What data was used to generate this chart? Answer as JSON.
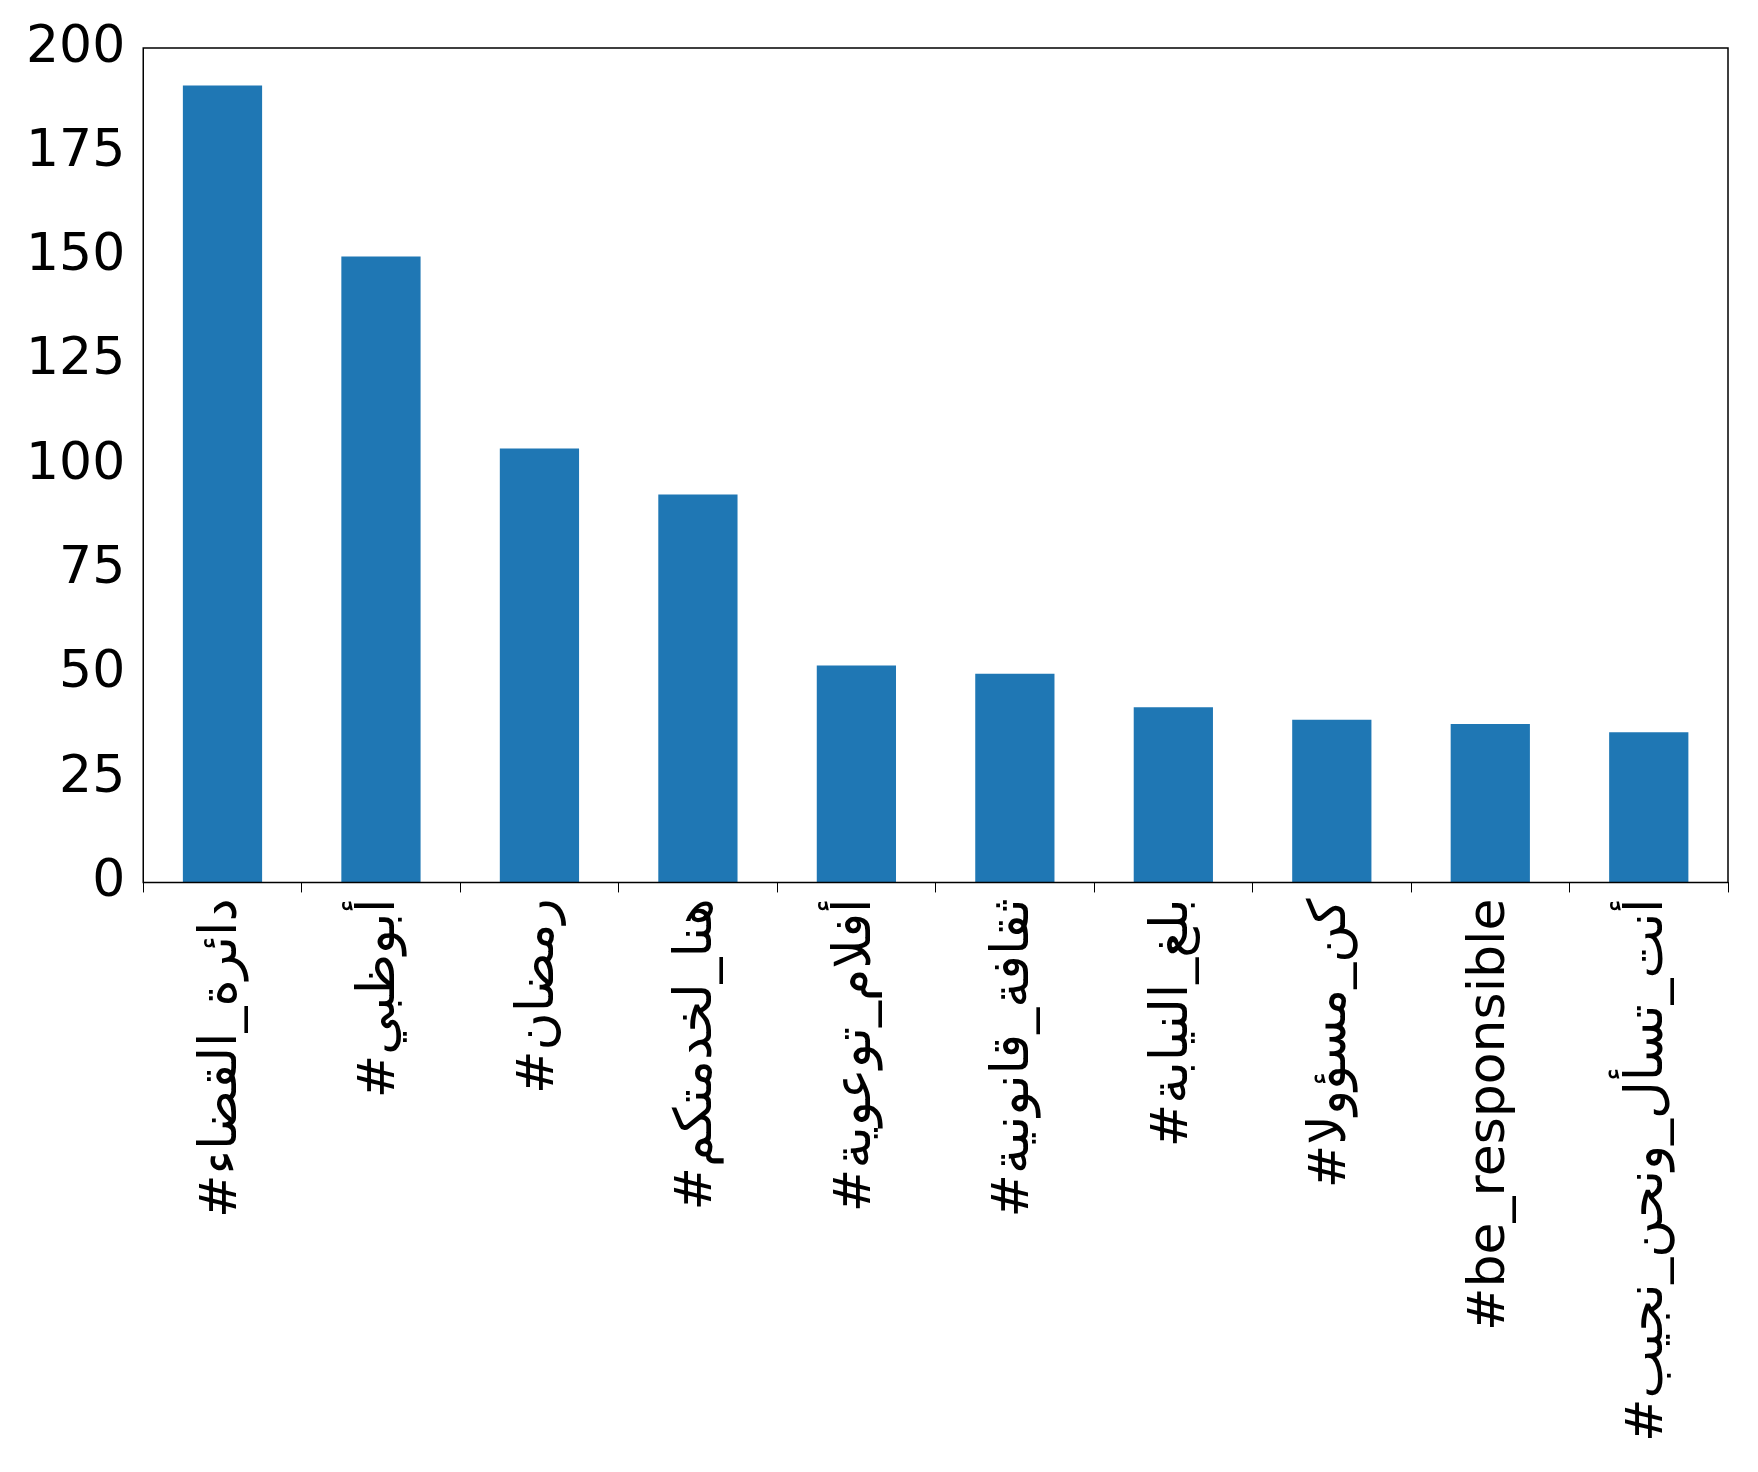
{
  "chart_data": {
    "type": "bar",
    "categories": [
      "#دائرة_القضاء",
      "#أبوظبي",
      "#رمضان",
      "#هنا_لخدمتكم",
      "#أفلام_توعوية",
      "#ثقافة_قانونية",
      "#بلغ_النيابة",
      "#كن_مسؤولا",
      "#be_responsible",
      "#أنت_تسأل_ونحن_نجيب"
    ],
    "values": [
      191,
      150,
      104,
      93,
      52,
      50,
      42,
      39,
      38,
      36
    ],
    "color": "#1f77b4",
    "ylim": [
      0,
      200
    ],
    "yticks": [
      0,
      25,
      50,
      75,
      100,
      125,
      150,
      175,
      200
    ],
    "grid": false,
    "legend": false
  }
}
